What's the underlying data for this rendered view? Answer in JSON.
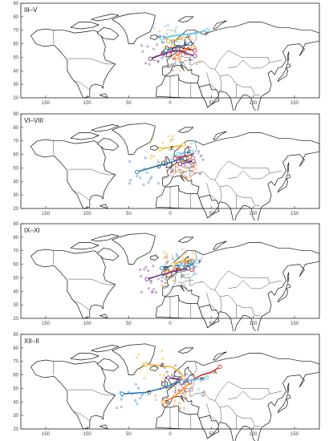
{
  "figure": {
    "x_ticks": [
      "150",
      "100",
      "50",
      "0",
      "50",
      "100",
      "150"
    ],
    "y_ticks": [
      "90",
      "80",
      "70",
      "60",
      "50",
      "40",
      "30",
      "20"
    ],
    "colors": {
      "A": "#d62728",
      "B": "#ff7f0e",
      "C": "#7e2f8e",
      "D": "#1f77b4",
      "E": "#edb120",
      "F": "#4dbeee",
      "frame": "#000000"
    }
  },
  "panels": [
    {
      "season": "III–V",
      "tracks": [
        {
          "id": "A",
          "color": "#d62728",
          "label_lon": 18,
          "label_lat": 56,
          "points": [
            [
              0,
              56
            ],
            [
              8,
              58
            ],
            [
              15,
              57
            ],
            [
              22,
              56
            ],
            [
              30,
              55
            ]
          ]
        },
        {
          "id": "B",
          "color": "#ff7f0e",
          "label_lon": 14,
          "label_lat": 53,
          "points": [
            [
              8,
              50
            ],
            [
              12,
              53
            ],
            [
              18,
              55
            ],
            [
              24,
              58
            ]
          ]
        },
        {
          "id": "C",
          "color": "#7e2f8e",
          "label_lon": -24,
          "label_lat": 49,
          "points": [
            [
              -24,
              49
            ],
            [
              -10,
              52
            ],
            [
              0,
              54
            ],
            [
              10,
              55
            ],
            [
              24,
              52
            ],
            [
              30,
              51
            ]
          ]
        },
        {
          "id": "D",
          "color": "#1f77b4",
          "label_lon": 0,
          "label_lat": 56,
          "points": [
            [
              -5,
              55
            ],
            [
              5,
              57
            ],
            [
              12,
              58
            ],
            [
              18,
              59
            ],
            [
              24,
              60
            ]
          ]
        },
        {
          "id": "E",
          "color": "#edb120",
          "label_lon": 14,
          "label_lat": 60,
          "points": [
            [
              -2,
              62
            ],
            [
              8,
              63
            ],
            [
              16,
              64
            ]
          ]
        },
        {
          "id": "F",
          "color": "#4dbeee",
          "label_lon": 40,
          "label_lat": 67,
          "points": [
            [
              -10,
              64
            ],
            [
              5,
              66
            ],
            [
              20,
              67
            ],
            [
              32,
              68
            ],
            [
              45,
              70
            ]
          ]
        }
      ]
    },
    {
      "season": "VI–VIII",
      "tracks": [
        {
          "id": "A",
          "color": "#d62728",
          "label_lon": 14,
          "label_lat": 58,
          "points": [
            [
              6,
              57
            ],
            [
              12,
              58
            ],
            [
              18,
              59
            ],
            [
              24,
              58
            ]
          ]
        },
        {
          "id": "B",
          "color": "#ff7f0e",
          "label_lon": 16,
          "label_lat": 55,
          "points": [
            [
              8,
              52
            ],
            [
              14,
              55
            ],
            [
              20,
              57
            ]
          ]
        },
        {
          "id": "C",
          "color": "#7e2f8e",
          "label_lon": 20,
          "label_lat": 54,
          "points": [
            [
              12,
              53
            ],
            [
              20,
              54
            ],
            [
              28,
              55
            ]
          ]
        },
        {
          "id": "D",
          "color": "#1f77b4",
          "label_lon": -18,
          "label_lat": 51,
          "points": [
            [
              -40,
              47
            ],
            [
              -18,
              51
            ],
            [
              0,
              54
            ],
            [
              10,
              56
            ],
            [
              18,
              57
            ]
          ]
        },
        {
          "id": "E",
          "color": "#edb120",
          "label_lon": -2,
          "label_lat": 65,
          "points": [
            [
              -12,
              64
            ],
            [
              -2,
              65
            ],
            [
              8,
              66
            ],
            [
              16,
              67
            ]
          ]
        },
        {
          "id": "F",
          "color": "#4dbeee",
          "label_lon": 18,
          "label_lat": 61,
          "points": [
            [
              10,
              60
            ],
            [
              18,
              61
            ],
            [
              26,
              62
            ]
          ]
        }
      ]
    },
    {
      "season": "IX–XI",
      "tracks": [
        {
          "id": "A",
          "color": "#d62728",
          "label_lon": 14,
          "label_lat": 57,
          "points": [
            [
              6,
              56
            ],
            [
              12,
              57
            ],
            [
              20,
              57
            ],
            [
              26,
              56
            ]
          ]
        },
        {
          "id": "B",
          "color": "#ff7f0e",
          "label_lon": 4,
          "label_lat": 55,
          "points": [
            [
              -4,
              54
            ],
            [
              4,
              55
            ],
            [
              12,
              57
            ],
            [
              20,
              58
            ]
          ]
        },
        {
          "id": "C",
          "color": "#7e2f8e",
          "label_lon": -28,
          "label_lat": 49,
          "points": [
            [
              -28,
              49
            ],
            [
              -12,
              52
            ],
            [
              0,
              54
            ],
            [
              12,
              56
            ],
            [
              22,
              57
            ]
          ]
        },
        {
          "id": "D",
          "color": "#1f77b4",
          "label_lon": -10,
          "label_lat": 57,
          "points": [
            [
              -10,
              57
            ],
            [
              2,
              59
            ],
            [
              14,
              59
            ],
            [
              26,
              58
            ]
          ]
        },
        {
          "id": "E",
          "color": "#edb120",
          "label_lon": 18,
          "label_lat": 62,
          "points": [
            [
              4,
              60
            ],
            [
              12,
              62
            ],
            [
              22,
              63
            ]
          ]
        },
        {
          "id": "F",
          "color": "#4dbeee",
          "label_lon": 32,
          "label_lat": 62,
          "points": [
            [
              14,
              58
            ],
            [
              24,
              60
            ],
            [
              32,
              62
            ]
          ]
        }
      ]
    },
    {
      "season": "XII–II",
      "tracks": [
        {
          "id": "A",
          "color": "#d62728",
          "label_lon": 50,
          "label_lat": 62,
          "points": [
            [
              14,
              54
            ],
            [
              26,
              56
            ],
            [
              38,
              60
            ],
            [
              50,
              62
            ],
            [
              60,
              66
            ]
          ]
        },
        {
          "id": "B",
          "color": "#ff7f0e",
          "label_lon": -8,
          "label_lat": 40,
          "points": [
            [
              -8,
              40
            ],
            [
              6,
              44
            ],
            [
              16,
              50
            ],
            [
              24,
              54
            ]
          ]
        },
        {
          "id": "C",
          "color": "#7e2f8e",
          "label_lon": 0,
          "label_lat": 58,
          "points": [
            [
              -2,
              58
            ],
            [
              8,
              57
            ],
            [
              16,
              56
            ],
            [
              24,
              55
            ]
          ]
        },
        {
          "id": "D",
          "color": "#1f77b4",
          "label_lon": -30,
          "label_lat": 47,
          "points": [
            [
              -58,
              46
            ],
            [
              -30,
              47
            ],
            [
              -10,
              50
            ],
            [
              6,
              54
            ],
            [
              16,
              56
            ]
          ]
        },
        {
          "id": "E",
          "color": "#edb120",
          "label_lon": -14,
          "label_lat": 67,
          "points": [
            [
              -30,
              68
            ],
            [
              -14,
              67
            ],
            [
              2,
              66
            ],
            [
              12,
              62
            ],
            [
              16,
              58
            ]
          ]
        },
        {
          "id": "F",
          "color": "#4dbeee",
          "label_lon": 34,
          "label_lat": 57,
          "points": [
            [
              14,
              55
            ],
            [
              24,
              56
            ],
            [
              34,
              57
            ],
            [
              44,
              58
            ]
          ]
        }
      ]
    }
  ]
}
